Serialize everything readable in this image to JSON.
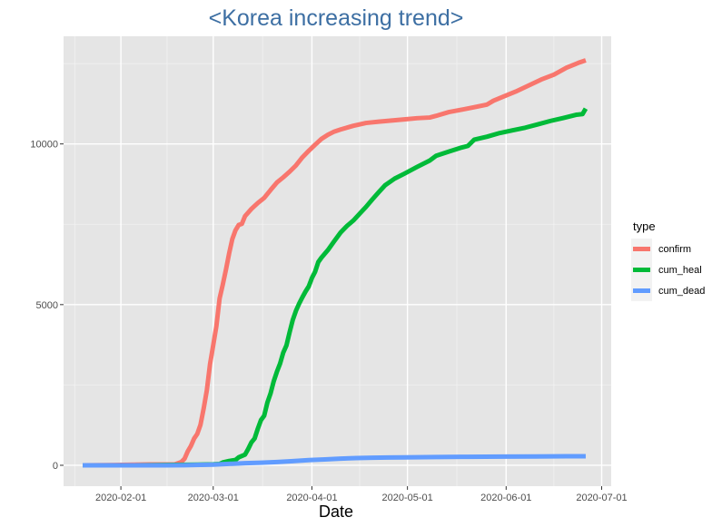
{
  "chart_data": {
    "type": "line",
    "title": "<Korea increasing trend>",
    "xlabel": "Date",
    "ylabel": "",
    "x_axis": {
      "kind": "date",
      "range": [
        "2020-01-14",
        "2020-07-04"
      ],
      "ticks": [
        "2020-02-01",
        "2020-03-01",
        "2020-04-01",
        "2020-05-01",
        "2020-06-01",
        "2020-07-01"
      ],
      "tick_labels": [
        "2020-02-01",
        "2020-03-01",
        "2020-04-01",
        "2020-05-01",
        "2020-06-01",
        "2020-07-01"
      ]
    },
    "y_axis": {
      "range": [
        -650,
        13350
      ],
      "ticks": [
        0,
        5000,
        10000
      ],
      "tick_labels": [
        "0",
        "5000",
        "10000"
      ]
    },
    "grid": true,
    "background": "#e5e5e5",
    "legend": {
      "title": "type",
      "position": "right"
    },
    "series": [
      {
        "name": "confirm",
        "color": "#f8766d",
        "points": [
          [
            "2020-01-20",
            1
          ],
          [
            "2020-02-01",
            12
          ],
          [
            "2020-02-10",
            27
          ],
          [
            "2020-02-18",
            31
          ],
          [
            "2020-02-20",
            104
          ],
          [
            "2020-02-21",
            204
          ],
          [
            "2020-02-22",
            433
          ],
          [
            "2020-02-23",
            602
          ],
          [
            "2020-02-24",
            833
          ],
          [
            "2020-02-25",
            977
          ],
          [
            "2020-02-26",
            1261
          ],
          [
            "2020-02-27",
            1766
          ],
          [
            "2020-02-28",
            2337
          ],
          [
            "2020-02-29",
            3150
          ],
          [
            "2020-03-01",
            3736
          ],
          [
            "2020-03-02",
            4335
          ],
          [
            "2020-03-03",
            5186
          ],
          [
            "2020-03-04",
            5621
          ],
          [
            "2020-03-05",
            6088
          ],
          [
            "2020-03-06",
            6593
          ],
          [
            "2020-03-07",
            7041
          ],
          [
            "2020-03-08",
            7313
          ],
          [
            "2020-03-09",
            7478
          ],
          [
            "2020-03-10",
            7513
          ],
          [
            "2020-03-11",
            7755
          ],
          [
            "2020-03-13",
            7979
          ],
          [
            "2020-03-15",
            8162
          ],
          [
            "2020-03-17",
            8320
          ],
          [
            "2020-03-19",
            8565
          ],
          [
            "2020-03-21",
            8799
          ],
          [
            "2020-03-23",
            8961
          ],
          [
            "2020-03-25",
            9137
          ],
          [
            "2020-03-27",
            9332
          ],
          [
            "2020-03-29",
            9583
          ],
          [
            "2020-03-31",
            9786
          ],
          [
            "2020-04-02",
            9976
          ],
          [
            "2020-04-04",
            10156
          ],
          [
            "2020-04-06",
            10284
          ],
          [
            "2020-04-08",
            10384
          ],
          [
            "2020-04-10",
            10450
          ],
          [
            "2020-04-14",
            10564
          ],
          [
            "2020-04-18",
            10653
          ],
          [
            "2020-04-22",
            10694
          ],
          [
            "2020-04-26",
            10728
          ],
          [
            "2020-04-30",
            10765
          ],
          [
            "2020-05-04",
            10801
          ],
          [
            "2020-05-08",
            10822
          ],
          [
            "2020-05-10",
            10874
          ],
          [
            "2020-05-14",
            10991
          ],
          [
            "2020-05-18",
            11065
          ],
          [
            "2020-05-22",
            11142
          ],
          [
            "2020-05-26",
            11225
          ],
          [
            "2020-05-28",
            11344
          ],
          [
            "2020-05-31",
            11468
          ],
          [
            "2020-06-04",
            11629
          ],
          [
            "2020-06-08",
            11814
          ],
          [
            "2020-06-12",
            12003
          ],
          [
            "2020-06-16",
            12155
          ],
          [
            "2020-06-20",
            12373
          ],
          [
            "2020-06-24",
            12535
          ],
          [
            "2020-06-26",
            12602
          ]
        ]
      },
      {
        "name": "cum_heal",
        "color": "#00ba38",
        "points": [
          [
            "2020-01-20",
            0
          ],
          [
            "2020-02-05",
            0
          ],
          [
            "2020-02-15",
            10
          ],
          [
            "2020-02-25",
            22
          ],
          [
            "2020-03-01",
            30
          ],
          [
            "2020-03-03",
            41
          ],
          [
            "2020-03-04",
            88
          ],
          [
            "2020-03-06",
            135
          ],
          [
            "2020-03-08",
            166
          ],
          [
            "2020-03-09",
            247
          ],
          [
            "2020-03-11",
            333
          ],
          [
            "2020-03-12",
            510
          ],
          [
            "2020-03-13",
            714
          ],
          [
            "2020-03-14",
            834
          ],
          [
            "2020-03-15",
            1137
          ],
          [
            "2020-03-16",
            1407
          ],
          [
            "2020-03-17",
            1540
          ],
          [
            "2020-03-18",
            1947
          ],
          [
            "2020-03-19",
            2233
          ],
          [
            "2020-03-20",
            2612
          ],
          [
            "2020-03-21",
            2909
          ],
          [
            "2020-03-22",
            3166
          ],
          [
            "2020-03-23",
            3507
          ],
          [
            "2020-03-24",
            3730
          ],
          [
            "2020-03-25",
            4144
          ],
          [
            "2020-03-26",
            4528
          ],
          [
            "2020-03-27",
            4811
          ],
          [
            "2020-03-28",
            5033
          ],
          [
            "2020-03-29",
            5228
          ],
          [
            "2020-03-30",
            5408
          ],
          [
            "2020-03-31",
            5567
          ],
          [
            "2020-04-01",
            5828
          ],
          [
            "2020-04-02",
            6021
          ],
          [
            "2020-04-03",
            6325
          ],
          [
            "2020-04-04",
            6463
          ],
          [
            "2020-04-06",
            6694
          ],
          [
            "2020-04-08",
            6973
          ],
          [
            "2020-04-10",
            7243
          ],
          [
            "2020-04-12",
            7447
          ],
          [
            "2020-04-14",
            7616
          ],
          [
            "2020-04-16",
            7829
          ],
          [
            "2020-04-18",
            8042
          ],
          [
            "2020-04-20",
            8277
          ],
          [
            "2020-04-22",
            8501
          ],
          [
            "2020-04-24",
            8717
          ],
          [
            "2020-04-27",
            8922
          ],
          [
            "2020-04-30",
            9072
          ],
          [
            "2020-05-04",
            9283
          ],
          [
            "2020-05-08",
            9484
          ],
          [
            "2020-05-10",
            9632
          ],
          [
            "2020-05-14",
            9762
          ],
          [
            "2020-05-18",
            9888
          ],
          [
            "2020-05-20",
            9938
          ],
          [
            "2020-05-22",
            10135
          ],
          [
            "2020-05-26",
            10226
          ],
          [
            "2020-05-30",
            10340
          ],
          [
            "2020-06-03",
            10422
          ],
          [
            "2020-06-07",
            10506
          ],
          [
            "2020-06-11",
            10611
          ],
          [
            "2020-06-15",
            10718
          ],
          [
            "2020-06-19",
            10809
          ],
          [
            "2020-06-23",
            10908
          ],
          [
            "2020-06-25",
            10930
          ],
          [
            "2020-06-26",
            11100
          ]
        ]
      },
      {
        "name": "cum_dead",
        "color": "#619cff",
        "points": [
          [
            "2020-01-20",
            0
          ],
          [
            "2020-02-15",
            0
          ],
          [
            "2020-02-21",
            2
          ],
          [
            "2020-02-26",
            12
          ],
          [
            "2020-03-01",
            22
          ],
          [
            "2020-03-06",
            44
          ],
          [
            "2020-03-11",
            66
          ],
          [
            "2020-03-16",
            81
          ],
          [
            "2020-03-21",
            102
          ],
          [
            "2020-03-26",
            131
          ],
          [
            "2020-03-31",
            162
          ],
          [
            "2020-04-05",
            183
          ],
          [
            "2020-04-10",
            208
          ],
          [
            "2020-04-15",
            225
          ],
          [
            "2020-04-20",
            237
          ],
          [
            "2020-04-25",
            242
          ],
          [
            "2020-04-30",
            247
          ],
          [
            "2020-05-10",
            256
          ],
          [
            "2020-05-20",
            264
          ],
          [
            "2020-05-31",
            270
          ],
          [
            "2020-06-10",
            276
          ],
          [
            "2020-06-20",
            280
          ],
          [
            "2020-06-26",
            282
          ]
        ]
      }
    ]
  }
}
